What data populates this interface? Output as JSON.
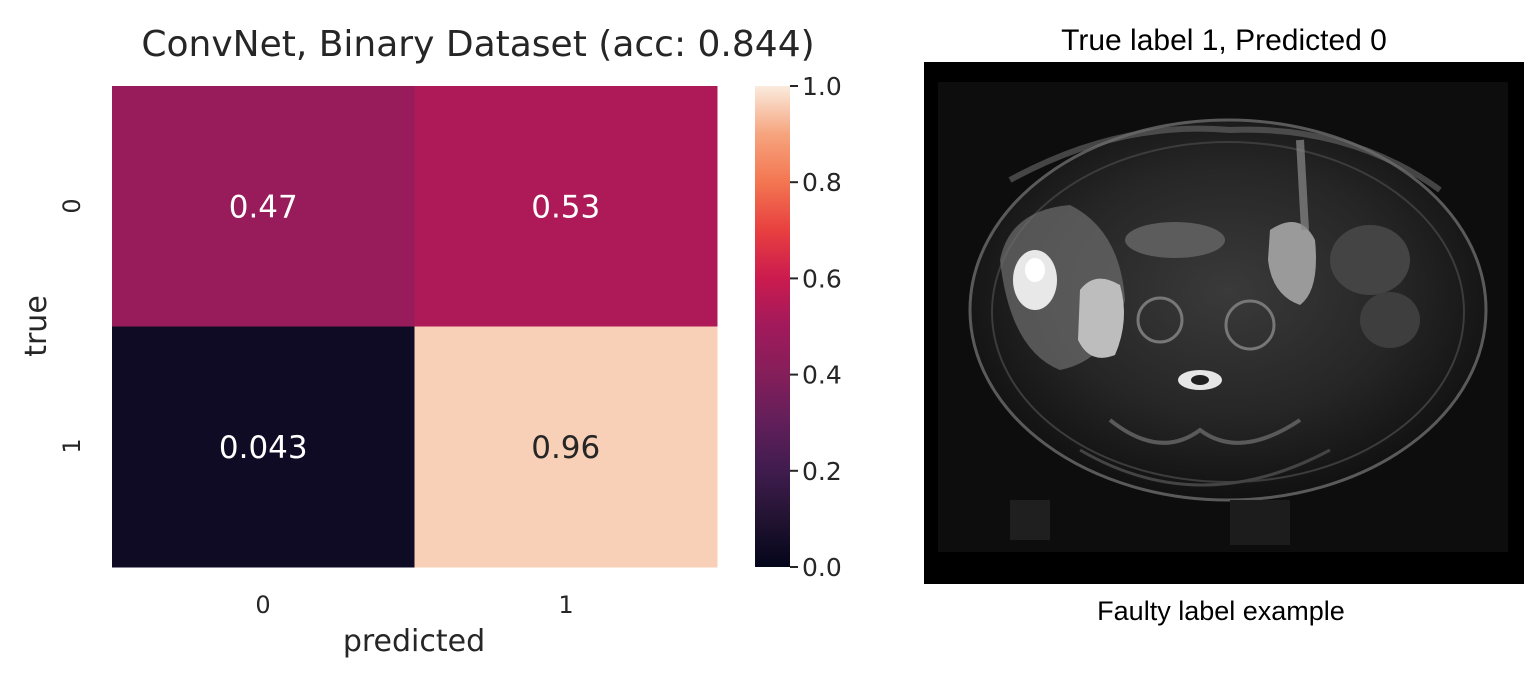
{
  "chart_data": {
    "type": "heatmap",
    "title": "ConvNet, Binary Dataset (acc: 0.844)",
    "xlabel": "predicted",
    "ylabel": "true",
    "x_categories": [
      "0",
      "1"
    ],
    "y_categories": [
      "0",
      "1"
    ],
    "values": [
      [
        0.47,
        0.53
      ],
      [
        0.043,
        0.96
      ]
    ],
    "annotations": [
      [
        "0.47",
        "0.53"
      ],
      [
        "0.043",
        "0.96"
      ]
    ],
    "colorbar": {
      "range": [
        0.0,
        1.0
      ],
      "ticks": [
        "0.0",
        "0.2",
        "0.4",
        "0.6",
        "0.8",
        "1.0"
      ],
      "colormap": "rocket"
    }
  },
  "image_panel": {
    "title": "True label 1, Predicted 0",
    "caption": "Faulty label example",
    "icon": "mri-axial-abdomen-scan"
  }
}
